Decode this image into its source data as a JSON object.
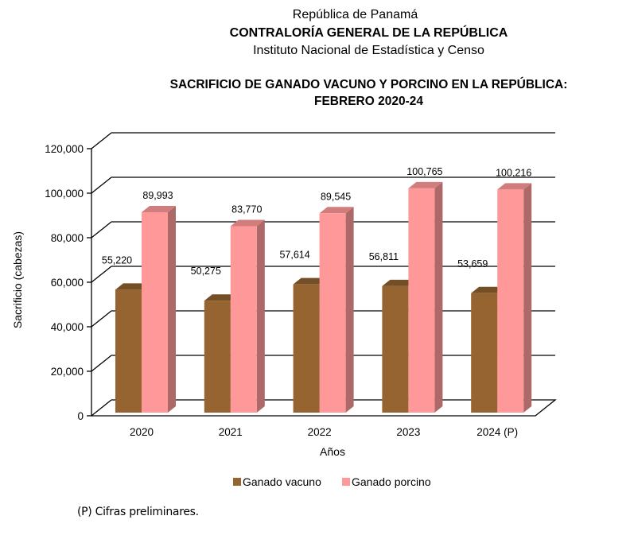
{
  "header": {
    "country": "República de Panamá",
    "institution": "CONTRALORÍA GENERAL DE LA REPÚBLICA",
    "department": "Instituto Nacional de Estadística y Censo"
  },
  "footnote": "(P) Cifras preliminares.",
  "chart_data": {
    "type": "bar",
    "style": "3d-clustered",
    "title": "SACRIFICIO DE GANADO VACUNO Y PORCINO EN LA REPÚBLICA:",
    "subtitle": "FEBRERO 2020-24",
    "xlabel": "Años",
    "ylabel": "Sacrificio (cabezas)",
    "ylim": [
      0,
      120000
    ],
    "yticks": [
      0,
      20000,
      40000,
      60000,
      80000,
      100000,
      120000
    ],
    "ytick_labels": [
      "0",
      "20,000",
      "40,000",
      "60,000",
      "80,000",
      "100,000",
      "120,000"
    ],
    "grid": true,
    "legend_position": "bottom",
    "categories": [
      "2020",
      "2021",
      "2022",
      "2023",
      "2024 (P)"
    ],
    "series": [
      {
        "name": "Ganado vacuno",
        "color": "#956430",
        "values": [
          55220,
          50275,
          57614,
          56811,
          53659
        ],
        "labels": [
          "55,220",
          "50,275",
          "57,614",
          "56,811",
          "53,659"
        ]
      },
      {
        "name": "Ganado porcino",
        "color": "#FF9999",
        "values": [
          89993,
          83770,
          89545,
          100765,
          100216
        ],
        "labels": [
          "89,993",
          "83,770",
          "89,545",
          "100,765",
          "100,216"
        ]
      }
    ]
  }
}
